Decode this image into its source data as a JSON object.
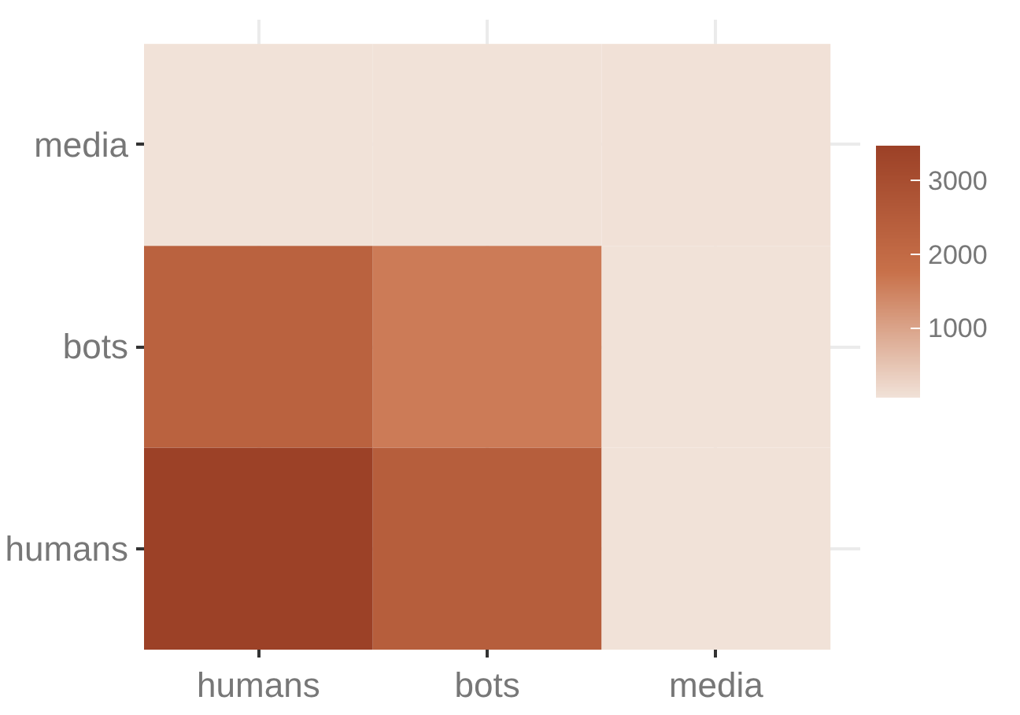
{
  "chart_data": {
    "type": "heatmap",
    "categories": [
      "humans",
      "bots",
      "media"
    ],
    "y_categories": [
      "media",
      "bots",
      "humans"
    ],
    "cells": [
      [
        60,
        60,
        70
      ],
      [
        2300,
        1600,
        60
      ],
      [
        3450,
        2450,
        60
      ]
    ],
    "clim": [
      50,
      3470
    ],
    "cticks": [
      1000,
      2000,
      3000
    ],
    "grid": true
  }
}
